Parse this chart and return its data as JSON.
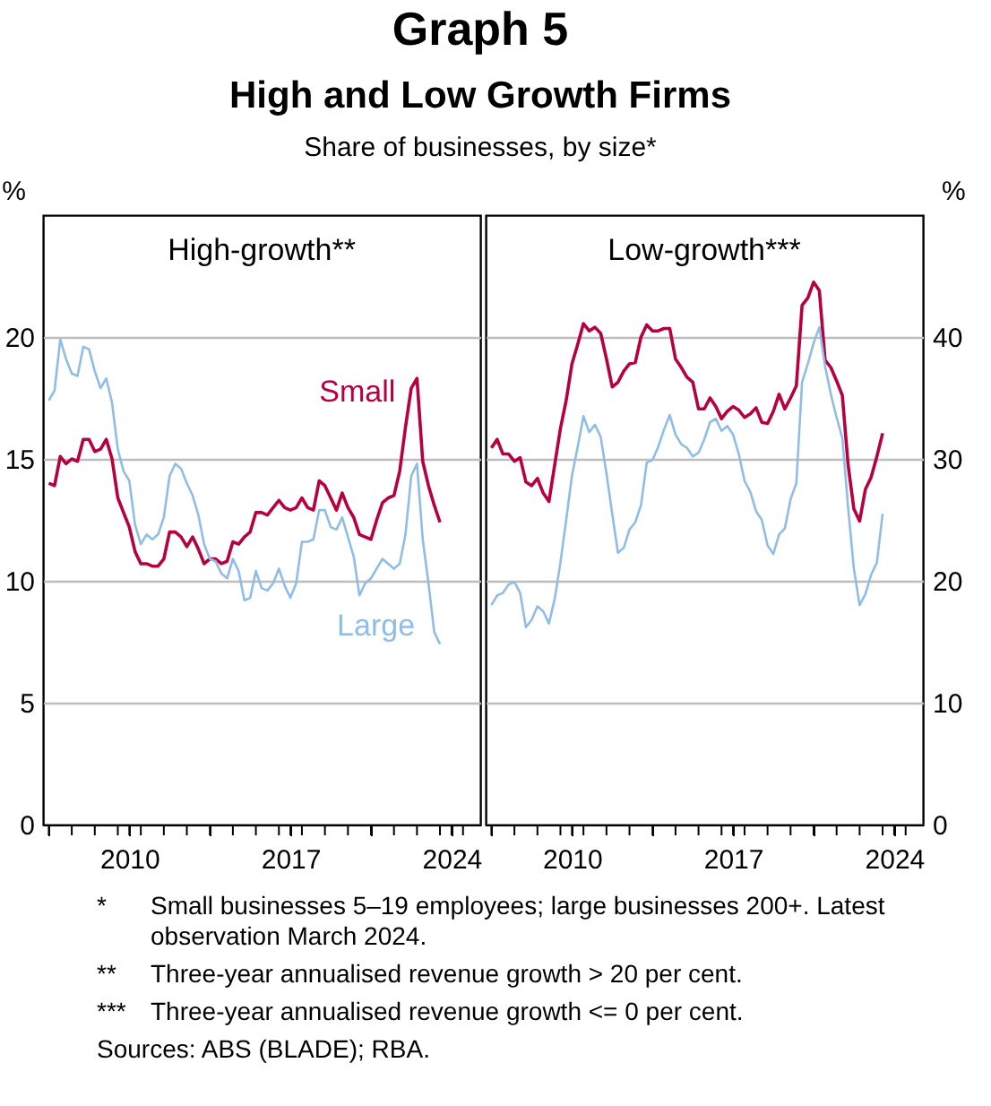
{
  "chart_data": [
    {
      "type": "line",
      "title": "High-growth**",
      "ylabel": "%",
      "annotations": [
        "Graph 5",
        "High and Low Growth Firms",
        "Share of businesses, by size*",
        "* Small businesses 5–19 employees; large businesses 200+. Latest observation March 2024.",
        "** Three-year annualised revenue growth > 20 per cent.",
        "*** Three-year annualised revenue growth <= 0 per cent.",
        "Sources: ABS (BLADE); RBA."
      ],
      "x": [
        2006.5,
        2006.75,
        2007,
        2007.25,
        2007.5,
        2007.75,
        2008,
        2008.25,
        2008.5,
        2008.75,
        2009,
        2009.25,
        2009.5,
        2009.75,
        2010,
        2010.25,
        2010.5,
        2010.75,
        2011,
        2011.25,
        2011.5,
        2011.75,
        2012,
        2012.25,
        2012.5,
        2012.75,
        2013,
        2013.25,
        2013.5,
        2013.75,
        2014,
        2014.25,
        2014.5,
        2014.75,
        2015,
        2015.25,
        2015.5,
        2015.75,
        2016,
        2016.25,
        2016.5,
        2016.75,
        2017,
        2017.25,
        2017.5,
        2017.75,
        2018,
        2018.25,
        2018.5,
        2018.75,
        2019,
        2019.25,
        2019.5,
        2019.75,
        2020,
        2020.25,
        2020.5,
        2020.75,
        2021,
        2021.25,
        2021.5,
        2021.75,
        2022,
        2022.25,
        2022.5,
        2022.75,
        2023,
        2023.25,
        2023.5
      ],
      "series": [
        {
          "name": "Small",
          "color": "#b8003f",
          "values": [
            14.0,
            13.9,
            15.1,
            14.8,
            15.0,
            14.9,
            15.8,
            15.8,
            15.3,
            15.4,
            15.8,
            15.0,
            13.4,
            12.8,
            12.2,
            11.2,
            10.7,
            10.7,
            10.6,
            10.6,
            10.9,
            12.0,
            12.0,
            11.8,
            11.4,
            11.8,
            11.3,
            10.7,
            10.9,
            10.9,
            10.7,
            10.8,
            11.6,
            11.5,
            11.8,
            12.0,
            12.8,
            12.8,
            12.7,
            13.0,
            13.3,
            13.0,
            12.9,
            13.0,
            13.4,
            13.0,
            12.9,
            14.1,
            13.9,
            13.4,
            12.9,
            13.6,
            13.0,
            12.6,
            11.9,
            11.8,
            11.7,
            12.5,
            13.2,
            13.4,
            13.5,
            14.5,
            16.3,
            17.9,
            18.3,
            14.9,
            13.9,
            13.1,
            12.4
          ]
        },
        {
          "name": "Large",
          "color": "#8fbde8",
          "values": [
            17.4,
            17.8,
            19.9,
            19.1,
            18.5,
            18.4,
            19.6,
            19.5,
            18.6,
            17.9,
            18.3,
            17.3,
            15.4,
            14.5,
            14.1,
            12.3,
            11.5,
            11.9,
            11.7,
            11.9,
            12.6,
            14.3,
            14.8,
            14.6,
            14.0,
            13.5,
            12.7,
            11.5,
            10.9,
            10.8,
            10.3,
            10.1,
            10.9,
            10.4,
            9.2,
            9.3,
            10.4,
            9.7,
            9.6,
            9.9,
            10.5,
            9.8,
            9.3,
            9.9,
            11.6,
            11.6,
            11.7,
            12.9,
            12.9,
            12.2,
            12.1,
            12.6,
            11.8,
            11.0,
            9.4,
            9.9,
            10.1,
            10.5,
            10.9,
            10.7,
            10.5,
            10.7,
            11.9,
            14.3,
            14.8,
            11.7,
            9.9,
            7.9,
            7.4
          ]
        }
      ],
      "xlim": [
        2006.25,
        2025.25
      ],
      "xticks": [
        {
          "value": 2006.5,
          "label": null
        },
        {
          "value": 2007.5,
          "label": null
        },
        {
          "value": 2008.5,
          "label": null
        },
        {
          "value": 2009.5,
          "label": null
        },
        2010,
        {
          "value": 2010.5,
          "label": null
        },
        {
          "value": 2011.5,
          "label": null
        },
        {
          "value": 2012.5,
          "label": null
        },
        {
          "value": 2013.5,
          "label": null
        },
        {
          "value": 2014.5,
          "label": null
        },
        {
          "value": 2015.5,
          "label": null
        },
        {
          "value": 2016.5,
          "label": null
        },
        2017,
        {
          "value": 2017.5,
          "label": null
        },
        {
          "value": 2018.5,
          "label": null
        },
        {
          "value": 2019.5,
          "label": null
        },
        {
          "value": 2020.5,
          "label": null
        },
        {
          "value": 2021.5,
          "label": null
        },
        {
          "value": 2022.5,
          "label": null
        },
        {
          "value": 2023.5,
          "label": null
        },
        2024,
        {
          "value": 2024.5,
          "label": null
        }
      ],
      "ylim": [
        0,
        25
      ],
      "yticks": [
        0,
        5,
        10,
        15,
        20
      ],
      "grid": "y"
    },
    {
      "type": "line",
      "title": "Low-growth***",
      "ylabel": "%",
      "x": [
        2006.5,
        2006.75,
        2007,
        2007.25,
        2007.5,
        2007.75,
        2008,
        2008.25,
        2008.5,
        2008.75,
        2009,
        2009.25,
        2009.5,
        2009.75,
        2010,
        2010.25,
        2010.5,
        2010.75,
        2011,
        2011.25,
        2011.5,
        2011.75,
        2012,
        2012.25,
        2012.5,
        2012.75,
        2013,
        2013.25,
        2013.5,
        2013.75,
        2014,
        2014.25,
        2014.5,
        2014.75,
        2015,
        2015.25,
        2015.5,
        2015.75,
        2016,
        2016.25,
        2016.5,
        2016.75,
        2017,
        2017.25,
        2017.5,
        2017.75,
        2018,
        2018.25,
        2018.5,
        2018.75,
        2019,
        2019.25,
        2019.5,
        2019.75,
        2020,
        2020.25,
        2020.5,
        2020.75,
        2021,
        2021.25,
        2021.5,
        2021.75,
        2022,
        2022.25,
        2022.5,
        2022.75,
        2023,
        2023.25,
        2023.5
      ],
      "series": [
        {
          "color": "#b8003f",
          "values": [
            30.9,
            31.6,
            30.4,
            30.4,
            29.8,
            30.1,
            28.1,
            27.8,
            28.4,
            27.2,
            26.5,
            29.5,
            32.5,
            34.8,
            37.8,
            39.4,
            41.1,
            40.5,
            40.8,
            40.3,
            38.2,
            35.9,
            36.3,
            37.2,
            37.8,
            37.9,
            40.0,
            41.0,
            40.5,
            40.5,
            40.7,
            40.7,
            38.2,
            37.5,
            36.7,
            36.3,
            34.1,
            34.1,
            35.0,
            34.3,
            33.3,
            33.9,
            34.3,
            34.0,
            33.4,
            33.7,
            34.2,
            33.0,
            32.9,
            33.9,
            35.3,
            34.1,
            35.0,
            36.0,
            42.6,
            43.2,
            44.5,
            43.8,
            38.1,
            37.5,
            36.4,
            35.2,
            29.5,
            25.9,
            24.9,
            27.5,
            28.5,
            30.2,
            32.1
          ]
        },
        {
          "color": "#8fbde8",
          "values": [
            18.0,
            18.8,
            19.0,
            19.7,
            19.9,
            19.0,
            16.2,
            16.8,
            17.9,
            17.5,
            16.5,
            18.5,
            21.5,
            25.0,
            28.6,
            31.0,
            33.5,
            32.2,
            32.8,
            31.8,
            28.8,
            25.5,
            22.3,
            22.7,
            24.2,
            24.8,
            26.2,
            29.7,
            29.9,
            31.0,
            32.4,
            33.6,
            32.0,
            31.2,
            30.9,
            30.2,
            30.5,
            31.6,
            33.0,
            33.3,
            32.3,
            32.7,
            32.0,
            30.4,
            28.2,
            27.3,
            25.7,
            25.0,
            22.9,
            22.2,
            23.8,
            24.3,
            26.7,
            28.0,
            36.3,
            37.8,
            39.5,
            40.8,
            37.6,
            35.3,
            33.4,
            31.7,
            26.0,
            21.0,
            18.0,
            18.9,
            20.5,
            21.5,
            25.5
          ]
        }
      ],
      "xlim": [
        2006.25,
        2025.25
      ],
      "xticks": [
        {
          "value": 2006.5,
          "label": null
        },
        {
          "value": 2007.5,
          "label": null
        },
        {
          "value": 2008.5,
          "label": null
        },
        {
          "value": 2009.5,
          "label": null
        },
        2010,
        {
          "value": 2010.5,
          "label": null
        },
        {
          "value": 2011.5,
          "label": null
        },
        {
          "value": 2012.5,
          "label": null
        },
        {
          "value": 2013.5,
          "label": null
        },
        {
          "value": 2014.5,
          "label": null
        },
        {
          "value": 2015.5,
          "label": null
        },
        {
          "value": 2016.5,
          "label": null
        },
        2017,
        {
          "value": 2017.5,
          "label": null
        },
        {
          "value": 2018.5,
          "label": null
        },
        {
          "value": 2019.5,
          "label": null
        },
        {
          "value": 2020.5,
          "label": null
        },
        {
          "value": 2021.5,
          "label": null
        },
        {
          "value": 2022.5,
          "label": null
        },
        {
          "value": 2023.5,
          "label": null
        },
        2024,
        {
          "value": 2024.5,
          "label": null
        }
      ],
      "ylim": [
        0,
        50
      ],
      "yticks": [
        0,
        10,
        20,
        30,
        40
      ],
      "grid": "y"
    }
  ]
}
